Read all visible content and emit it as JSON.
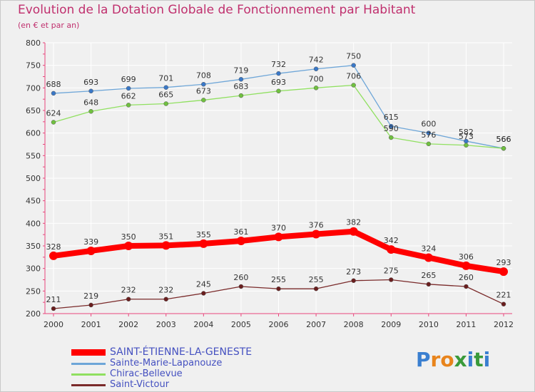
{
  "header": {
    "title": "Evolution de la Dotation Globale de Fonctionnement par Habitant",
    "subtitle": "(en € et par an)"
  },
  "colors": {
    "title": "#c0306e",
    "legend_text": "#4450c0",
    "axis": "#e8467c",
    "grid": "#ffffff"
  },
  "brand": {
    "letters": [
      "P",
      "r",
      "o",
      "x",
      "i",
      "t",
      "i"
    ],
    "colors": [
      "#3a7fd0",
      "#e8841c",
      "#e8841c",
      "#3a9a3a",
      "#3a7fd0",
      "#3a9a3a",
      "#3a7fd0"
    ]
  },
  "chart_data": {
    "type": "line",
    "title": "Evolution de la Dotation Globale de Fonctionnement par Habitant",
    "subtitle": "(en € et par an)",
    "xlabel": "",
    "ylabel": "",
    "x": [
      "2000",
      "2001",
      "2002",
      "2003",
      "2004",
      "2005",
      "2006",
      "2007",
      "2008",
      "2009",
      "2010",
      "2011",
      "2012"
    ],
    "ylim": [
      200,
      800
    ],
    "yticks": [
      "200",
      "250",
      "300",
      "350",
      "400",
      "450",
      "500",
      "550",
      "600",
      "650",
      "700",
      "750",
      "800"
    ],
    "grid": true,
    "legend_position": "bottom-left",
    "series": [
      {
        "name": "SAINT-ÉTIENNE-LA-GENESTE",
        "color": "#ff0000",
        "emphasis": "bold",
        "values": [
          328,
          339,
          350,
          351,
          355,
          361,
          370,
          376,
          382,
          342,
          324,
          306,
          293
        ]
      },
      {
        "name": "Sainte-Marie-Lapanouze",
        "color": "#6ea6d8",
        "marker_color": "#3a78c8",
        "emphasis": "normal",
        "values": [
          688,
          693,
          699,
          701,
          708,
          719,
          732,
          742,
          750,
          615,
          600,
          582,
          566
        ]
      },
      {
        "name": "Chirac-Bellevue",
        "color": "#90e060",
        "marker_color": "#70c040",
        "emphasis": "normal",
        "values": [
          624,
          648,
          662,
          665,
          673,
          683,
          693,
          700,
          706,
          590,
          576,
          573,
          566
        ]
      },
      {
        "name": "Saint-Victour",
        "color": "#7a2a2a",
        "marker_color": "#6a1e1e",
        "emphasis": "normal",
        "values": [
          211,
          219,
          232,
          232,
          245,
          260,
          255,
          255,
          273,
          275,
          265,
          260,
          221
        ]
      }
    ]
  }
}
